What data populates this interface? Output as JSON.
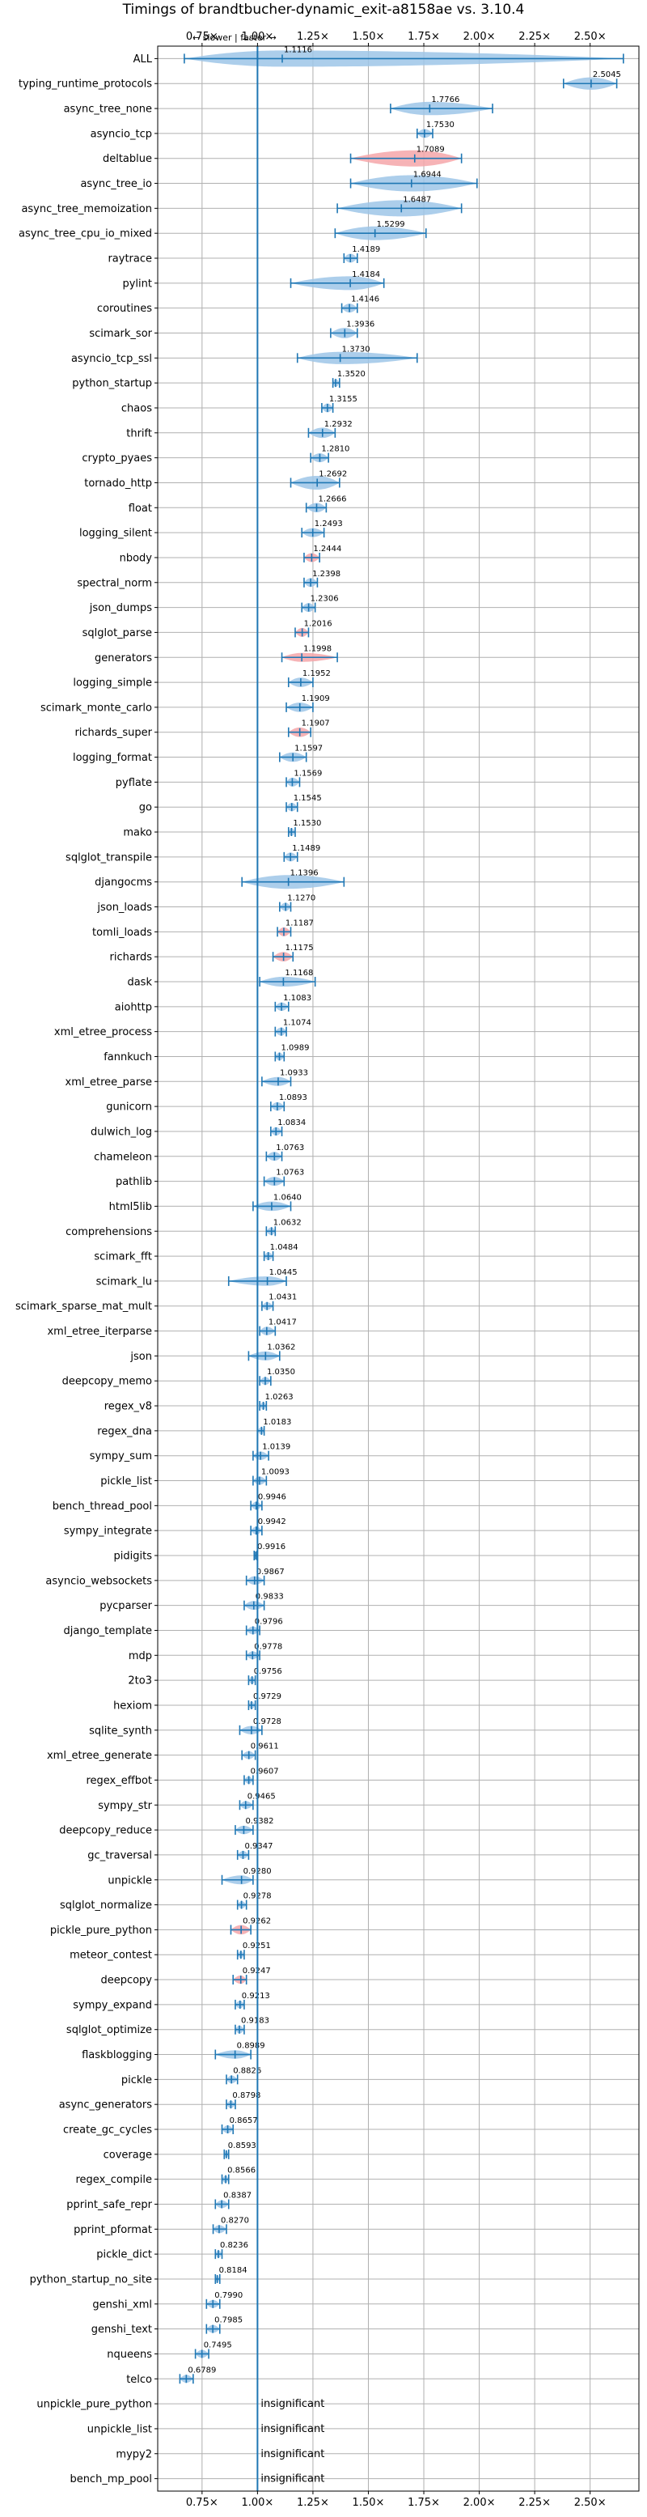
{
  "chart_data": {
    "type": "violin",
    "title": "Timings of brandtbucher-dynamic_exit-a8158ae vs. 3.10.4",
    "direction_note": "← slower | faster →",
    "xlim": [
      0.55,
      2.72
    ],
    "x_ticks": [
      0.75,
      1.0,
      1.25,
      1.5,
      1.75,
      2.0,
      2.25,
      2.5
    ],
    "x_tick_labels": [
      "0.75×",
      "1.00×",
      "1.25×",
      "1.50×",
      "1.75×",
      "2.00×",
      "2.25×",
      "2.50×"
    ],
    "reference_line": 1.0,
    "grid": true,
    "colors": {
      "normal": "#1f77b4",
      "fill_normal": "#9ec5e8",
      "fill_slower": "#f4a6a9",
      "reference": "#1f77b4"
    },
    "benchmarks": [
      {
        "name": "ALL",
        "value": 1.1116,
        "label": "1.1116",
        "min": 0.67,
        "max": 2.65,
        "spread": 0.2,
        "color": "blue"
      },
      {
        "name": "typing_runtime_protocols",
        "value": 2.5045,
        "label": "2.5045",
        "min": 2.38,
        "max": 2.62,
        "spread": 0.12,
        "color": "blue"
      },
      {
        "name": "async_tree_none",
        "value": 1.7766,
        "label": "1.7766",
        "min": 1.6,
        "max": 2.06,
        "spread": 0.14,
        "color": "blue"
      },
      {
        "name": "asyncio_tcp",
        "value": 1.753,
        "label": "1.7530",
        "min": 1.72,
        "max": 1.79,
        "spread": 0.05,
        "color": "blue"
      },
      {
        "name": "deltablue",
        "value": 1.7089,
        "label": "1.7089",
        "min": 1.42,
        "max": 1.92,
        "spread": 0.2,
        "color": "red"
      },
      {
        "name": "async_tree_io",
        "value": 1.6944,
        "label": "1.6944",
        "min": 1.42,
        "max": 1.99,
        "spread": 0.2,
        "color": "blue"
      },
      {
        "name": "async_tree_memoization",
        "value": 1.6487,
        "label": "1.6487",
        "min": 1.36,
        "max": 1.92,
        "spread": 0.2,
        "color": "blue"
      },
      {
        "name": "async_tree_cpu_io_mixed",
        "value": 1.5299,
        "label": "1.5299",
        "min": 1.35,
        "max": 1.76,
        "spread": 0.15,
        "color": "blue"
      },
      {
        "name": "raytrace",
        "value": 1.4189,
        "label": "1.4189",
        "min": 1.39,
        "max": 1.45,
        "spread": 0.05,
        "color": "blue"
      },
      {
        "name": "pylint",
        "value": 1.4184,
        "label": "1.4184",
        "min": 1.15,
        "max": 1.57,
        "spread": 0.15,
        "color": "blue"
      },
      {
        "name": "coroutines",
        "value": 1.4146,
        "label": "1.4146",
        "min": 1.38,
        "max": 1.45,
        "spread": 0.05,
        "color": "blue"
      },
      {
        "name": "scimark_sor",
        "value": 1.3936,
        "label": "1.3936",
        "min": 1.33,
        "max": 1.45,
        "spread": 0.08,
        "color": "blue"
      },
      {
        "name": "asyncio_tcp_ssl",
        "value": 1.373,
        "label": "1.3730",
        "min": 1.18,
        "max": 1.72,
        "spread": 0.12,
        "color": "blue"
      },
      {
        "name": "python_startup",
        "value": 1.352,
        "label": "1.3520",
        "min": 1.34,
        "max": 1.37,
        "spread": 0.03,
        "color": "blue"
      },
      {
        "name": "chaos",
        "value": 1.3155,
        "label": "1.3155",
        "min": 1.29,
        "max": 1.34,
        "spread": 0.05,
        "color": "blue"
      },
      {
        "name": "thrift",
        "value": 1.2932,
        "label": "1.2932",
        "min": 1.23,
        "max": 1.35,
        "spread": 0.08,
        "color": "blue"
      },
      {
        "name": "crypto_pyaes",
        "value": 1.281,
        "label": "1.2810",
        "min": 1.24,
        "max": 1.32,
        "spread": 0.05,
        "color": "blue"
      },
      {
        "name": "tornado_http",
        "value": 1.2692,
        "label": "1.2692",
        "min": 1.15,
        "max": 1.37,
        "spread": 0.15,
        "color": "blue"
      },
      {
        "name": "float",
        "value": 1.2666,
        "label": "1.2666",
        "min": 1.22,
        "max": 1.31,
        "spread": 0.06,
        "color": "blue"
      },
      {
        "name": "logging_silent",
        "value": 1.2493,
        "label": "1.2493",
        "min": 1.2,
        "max": 1.3,
        "spread": 0.05,
        "color": "blue"
      },
      {
        "name": "nbody",
        "value": 1.2444,
        "label": "1.2444",
        "min": 1.21,
        "max": 1.28,
        "spread": 0.05,
        "color": "red"
      },
      {
        "name": "spectral_norm",
        "value": 1.2398,
        "label": "1.2398",
        "min": 1.21,
        "max": 1.27,
        "spread": 0.05,
        "color": "blue"
      },
      {
        "name": "json_dumps",
        "value": 1.2306,
        "label": "1.2306",
        "min": 1.2,
        "max": 1.26,
        "spread": 0.05,
        "color": "blue"
      },
      {
        "name": "sqlglot_parse",
        "value": 1.2016,
        "label": "1.2016",
        "min": 1.17,
        "max": 1.23,
        "spread": 0.05,
        "color": "red"
      },
      {
        "name": "generators",
        "value": 1.1998,
        "label": "1.1998",
        "min": 1.11,
        "max": 1.36,
        "spread": 0.05,
        "color": "red"
      },
      {
        "name": "logging_simple",
        "value": 1.1952,
        "label": "1.1952",
        "min": 1.14,
        "max": 1.25,
        "spread": 0.06,
        "color": "blue"
      },
      {
        "name": "scimark_monte_carlo",
        "value": 1.1909,
        "label": "1.1909",
        "min": 1.13,
        "max": 1.25,
        "spread": 0.06,
        "color": "blue"
      },
      {
        "name": "richards_super",
        "value": 1.1907,
        "label": "1.1907",
        "min": 1.14,
        "max": 1.24,
        "spread": 0.06,
        "color": "red"
      },
      {
        "name": "logging_format",
        "value": 1.1597,
        "label": "1.1597",
        "min": 1.1,
        "max": 1.22,
        "spread": 0.06,
        "color": "blue"
      },
      {
        "name": "pyflate",
        "value": 1.1569,
        "label": "1.1569",
        "min": 1.13,
        "max": 1.19,
        "spread": 0.05,
        "color": "blue"
      },
      {
        "name": "go",
        "value": 1.1545,
        "label": "1.1545",
        "min": 1.13,
        "max": 1.18,
        "spread": 0.04,
        "color": "blue"
      },
      {
        "name": "mako",
        "value": 1.153,
        "label": "1.1530",
        "min": 1.14,
        "max": 1.17,
        "spread": 0.03,
        "color": "blue"
      },
      {
        "name": "sqlglot_transpile",
        "value": 1.1489,
        "label": "1.1489",
        "min": 1.12,
        "max": 1.18,
        "spread": 0.05,
        "color": "blue"
      },
      {
        "name": "djangocms",
        "value": 1.1396,
        "label": "1.1396",
        "min": 0.93,
        "max": 1.39,
        "spread": 0.15,
        "color": "blue"
      },
      {
        "name": "json_loads",
        "value": 1.127,
        "label": "1.1270",
        "min": 1.1,
        "max": 1.15,
        "spread": 0.04,
        "color": "blue"
      },
      {
        "name": "tomli_loads",
        "value": 1.1187,
        "label": "1.1187",
        "min": 1.09,
        "max": 1.15,
        "spread": 0.05,
        "color": "red"
      },
      {
        "name": "richards",
        "value": 1.1175,
        "label": "1.1175",
        "min": 1.07,
        "max": 1.16,
        "spread": 0.06,
        "color": "red"
      },
      {
        "name": "dask",
        "value": 1.1168,
        "label": "1.1168",
        "min": 1.01,
        "max": 1.26,
        "spread": 0.07,
        "color": "blue"
      },
      {
        "name": "aiohttp",
        "value": 1.1083,
        "label": "1.1083",
        "min": 1.08,
        "max": 1.14,
        "spread": 0.04,
        "color": "blue"
      },
      {
        "name": "xml_etree_process",
        "value": 1.1074,
        "label": "1.1074",
        "min": 1.08,
        "max": 1.13,
        "spread": 0.04,
        "color": "blue"
      },
      {
        "name": "fannkuch",
        "value": 1.0989,
        "label": "1.0989",
        "min": 1.08,
        "max": 1.12,
        "spread": 0.03,
        "color": "blue"
      },
      {
        "name": "xml_etree_parse",
        "value": 1.0933,
        "label": "1.0933",
        "min": 1.02,
        "max": 1.15,
        "spread": 0.05,
        "color": "blue"
      },
      {
        "name": "gunicorn",
        "value": 1.0893,
        "label": "1.0893",
        "min": 1.06,
        "max": 1.12,
        "spread": 0.04,
        "color": "blue"
      },
      {
        "name": "dulwich_log",
        "value": 1.0834,
        "label": "1.0834",
        "min": 1.06,
        "max": 1.11,
        "spread": 0.04,
        "color": "blue"
      },
      {
        "name": "chameleon",
        "value": 1.0763,
        "label": "1.0763",
        "min": 1.04,
        "max": 1.11,
        "spread": 0.05,
        "color": "blue"
      },
      {
        "name": "pathlib",
        "value": 1.0763,
        "label": "1.0763",
        "min": 1.03,
        "max": 1.12,
        "spread": 0.05,
        "color": "blue"
      },
      {
        "name": "html5lib",
        "value": 1.064,
        "label": "1.0640",
        "min": 0.98,
        "max": 1.15,
        "spread": 0.06,
        "color": "blue"
      },
      {
        "name": "comprehensions",
        "value": 1.0632,
        "label": "1.0632",
        "min": 1.04,
        "max": 1.08,
        "spread": 0.03,
        "color": "blue"
      },
      {
        "name": "scimark_fft",
        "value": 1.0484,
        "label": "1.0484",
        "min": 1.03,
        "max": 1.07,
        "spread": 0.03,
        "color": "blue"
      },
      {
        "name": "scimark_lu",
        "value": 1.0445,
        "label": "1.0445",
        "min": 0.87,
        "max": 1.13,
        "spread": 0.06,
        "color": "blue"
      },
      {
        "name": "scimark_sparse_mat_mult",
        "value": 1.0431,
        "label": "1.0431",
        "min": 1.02,
        "max": 1.07,
        "spread": 0.03,
        "color": "blue"
      },
      {
        "name": "xml_etree_iterparse",
        "value": 1.0417,
        "label": "1.0417",
        "min": 1.01,
        "max": 1.08,
        "spread": 0.04,
        "color": "blue"
      },
      {
        "name": "json",
        "value": 1.0362,
        "label": "1.0362",
        "min": 0.96,
        "max": 1.1,
        "spread": 0.05,
        "color": "blue"
      },
      {
        "name": "deepcopy_memo",
        "value": 1.035,
        "label": "1.0350",
        "min": 1.01,
        "max": 1.06,
        "spread": 0.03,
        "color": "blue"
      },
      {
        "name": "regex_v8",
        "value": 1.0263,
        "label": "1.0263",
        "min": 1.01,
        "max": 1.04,
        "spread": 0.02,
        "color": "blue"
      },
      {
        "name": "regex_dna",
        "value": 1.0183,
        "label": "1.0183",
        "min": 1.0,
        "max": 1.03,
        "spread": 0.02,
        "color": "blue"
      },
      {
        "name": "sympy_sum",
        "value": 1.0139,
        "label": "1.0139",
        "min": 0.98,
        "max": 1.05,
        "spread": 0.04,
        "color": "blue"
      },
      {
        "name": "pickle_list",
        "value": 1.0093,
        "label": "1.0093",
        "min": 0.98,
        "max": 1.04,
        "spread": 0.04,
        "color": "blue"
      },
      {
        "name": "bench_thread_pool",
        "value": 0.9946,
        "label": "0.9946",
        "min": 0.97,
        "max": 1.02,
        "spread": 0.03,
        "color": "blue"
      },
      {
        "name": "sympy_integrate",
        "value": 0.9942,
        "label": "0.9942",
        "min": 0.97,
        "max": 1.02,
        "spread": 0.03,
        "color": "blue"
      },
      {
        "name": "pidigits",
        "value": 0.9916,
        "label": "0.9916",
        "min": 0.985,
        "max": 0.998,
        "spread": 0.01,
        "color": "blue"
      },
      {
        "name": "asyncio_websockets",
        "value": 0.9867,
        "label": "0.9867",
        "min": 0.95,
        "max": 1.03,
        "spread": 0.04,
        "color": "blue"
      },
      {
        "name": "pycparser",
        "value": 0.9833,
        "label": "0.9833",
        "min": 0.94,
        "max": 1.03,
        "spread": 0.05,
        "color": "blue"
      },
      {
        "name": "django_template",
        "value": 0.9796,
        "label": "0.9796",
        "min": 0.95,
        "max": 1.01,
        "spread": 0.03,
        "color": "blue"
      },
      {
        "name": "mdp",
        "value": 0.9778,
        "label": "0.9778",
        "min": 0.95,
        "max": 1.01,
        "spread": 0.03,
        "color": "blue"
      },
      {
        "name": "2to3",
        "value": 0.9756,
        "label": "0.9756",
        "min": 0.96,
        "max": 0.99,
        "spread": 0.02,
        "color": "blue"
      },
      {
        "name": "hexiom",
        "value": 0.9729,
        "label": "0.9729",
        "min": 0.96,
        "max": 0.99,
        "spread": 0.02,
        "color": "blue"
      },
      {
        "name": "sqlite_synth",
        "value": 0.9728,
        "label": "0.9728",
        "min": 0.92,
        "max": 1.02,
        "spread": 0.04,
        "color": "blue"
      },
      {
        "name": "xml_etree_generate",
        "value": 0.9611,
        "label": "0.9611",
        "min": 0.93,
        "max": 0.99,
        "spread": 0.03,
        "color": "blue"
      },
      {
        "name": "regex_effbot",
        "value": 0.9607,
        "label": "0.9607",
        "min": 0.94,
        "max": 0.98,
        "spread": 0.02,
        "color": "blue"
      },
      {
        "name": "sympy_str",
        "value": 0.9465,
        "label": "0.9465",
        "min": 0.92,
        "max": 0.98,
        "spread": 0.03,
        "color": "blue"
      },
      {
        "name": "deepcopy_reduce",
        "value": 0.9382,
        "label": "0.9382",
        "min": 0.9,
        "max": 0.98,
        "spread": 0.04,
        "color": "blue"
      },
      {
        "name": "gc_traversal",
        "value": 0.9347,
        "label": "0.9347",
        "min": 0.91,
        "max": 0.96,
        "spread": 0.03,
        "color": "blue"
      },
      {
        "name": "unpickle",
        "value": 0.928,
        "label": "0.9280",
        "min": 0.84,
        "max": 0.98,
        "spread": 0.05,
        "color": "blue"
      },
      {
        "name": "sqlglot_normalize",
        "value": 0.9278,
        "label": "0.9278",
        "min": 0.91,
        "max": 0.95,
        "spread": 0.02,
        "color": "blue"
      },
      {
        "name": "pickle_pure_python",
        "value": 0.9262,
        "label": "0.9262",
        "min": 0.88,
        "max": 0.97,
        "spread": 0.06,
        "color": "red"
      },
      {
        "name": "meteor_contest",
        "value": 0.9251,
        "label": "0.9251",
        "min": 0.91,
        "max": 0.94,
        "spread": 0.02,
        "color": "blue"
      },
      {
        "name": "deepcopy",
        "value": 0.9247,
        "label": "0.9247",
        "min": 0.89,
        "max": 0.95,
        "spread": 0.04,
        "color": "red"
      },
      {
        "name": "sympy_expand",
        "value": 0.9213,
        "label": "0.9213",
        "min": 0.9,
        "max": 0.94,
        "spread": 0.03,
        "color": "blue"
      },
      {
        "name": "sqlglot_optimize",
        "value": 0.9183,
        "label": "0.9183",
        "min": 0.9,
        "max": 0.94,
        "spread": 0.03,
        "color": "blue"
      },
      {
        "name": "flaskblogging",
        "value": 0.8989,
        "label": "0.8989",
        "min": 0.81,
        "max": 0.97,
        "spread": 0.04,
        "color": "blue"
      },
      {
        "name": "pickle",
        "value": 0.8826,
        "label": "0.8826",
        "min": 0.86,
        "max": 0.91,
        "spread": 0.03,
        "color": "blue"
      },
      {
        "name": "async_generators",
        "value": 0.8798,
        "label": "0.8798",
        "min": 0.86,
        "max": 0.9,
        "spread": 0.02,
        "color": "blue"
      },
      {
        "name": "create_gc_cycles",
        "value": 0.8657,
        "label": "0.8657",
        "min": 0.84,
        "max": 0.89,
        "spread": 0.03,
        "color": "blue"
      },
      {
        "name": "coverage",
        "value": 0.8593,
        "label": "0.8593",
        "min": 0.85,
        "max": 0.87,
        "spread": 0.015,
        "color": "blue"
      },
      {
        "name": "regex_compile",
        "value": 0.8566,
        "label": "0.8566",
        "min": 0.84,
        "max": 0.87,
        "spread": 0.02,
        "color": "blue"
      },
      {
        "name": "pprint_safe_repr",
        "value": 0.8387,
        "label": "0.8387",
        "min": 0.81,
        "max": 0.87,
        "spread": 0.03,
        "color": "blue"
      },
      {
        "name": "pprint_pformat",
        "value": 0.827,
        "label": "0.8270",
        "min": 0.8,
        "max": 0.86,
        "spread": 0.03,
        "color": "blue"
      },
      {
        "name": "pickle_dict",
        "value": 0.8236,
        "label": "0.8236",
        "min": 0.81,
        "max": 0.84,
        "spread": 0.02,
        "color": "blue"
      },
      {
        "name": "python_startup_no_site",
        "value": 0.8184,
        "label": "0.8184",
        "min": 0.81,
        "max": 0.83,
        "spread": 0.012,
        "color": "blue"
      },
      {
        "name": "genshi_xml",
        "value": 0.799,
        "label": "0.7990",
        "min": 0.77,
        "max": 0.83,
        "spread": 0.03,
        "color": "blue"
      },
      {
        "name": "genshi_text",
        "value": 0.7985,
        "label": "0.7985",
        "min": 0.77,
        "max": 0.83,
        "spread": 0.03,
        "color": "blue"
      },
      {
        "name": "nqueens",
        "value": 0.7495,
        "label": "0.7495",
        "min": 0.72,
        "max": 0.78,
        "spread": 0.03,
        "color": "blue"
      },
      {
        "name": "telco",
        "value": 0.6789,
        "label": "0.6789",
        "min": 0.65,
        "max": 0.71,
        "spread": 0.03,
        "color": "blue"
      },
      {
        "name": "unpickle_pure_python",
        "value": null,
        "label": "insignificant"
      },
      {
        "name": "unpickle_list",
        "value": null,
        "label": "insignificant"
      },
      {
        "name": "mypy2",
        "value": null,
        "label": "insignificant"
      },
      {
        "name": "bench_mp_pool",
        "value": null,
        "label": "insignificant"
      }
    ]
  }
}
